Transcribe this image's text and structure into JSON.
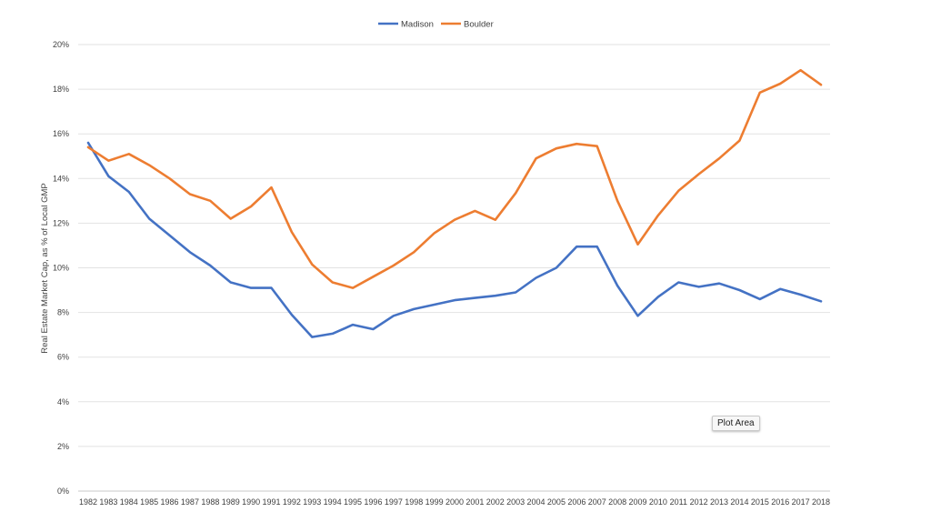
{
  "chart_data": {
    "type": "line",
    "title": "",
    "xlabel": "",
    "ylabel": "Real Estate Market Cap, as % of Local GMP",
    "ylim": [
      0,
      20
    ],
    "y_ticks": [
      "0%",
      "2%",
      "4%",
      "6%",
      "8%",
      "10%",
      "12%",
      "14%",
      "16%",
      "18%",
      "20%"
    ],
    "grid": true,
    "legend_position": "top-center",
    "categories": [
      "1982",
      "1983",
      "1984",
      "1985",
      "1986",
      "1987",
      "1988",
      "1989",
      "1990",
      "1991",
      "1992",
      "1993",
      "1994",
      "1995",
      "1996",
      "1997",
      "1998",
      "1999",
      "2000",
      "2001",
      "2002",
      "2003",
      "2004",
      "2005",
      "2006",
      "2007",
      "2008",
      "2009",
      "2010",
      "2011",
      "2012",
      "2013",
      "2014",
      "2015",
      "2016",
      "2017",
      "2018"
    ],
    "series": [
      {
        "name": "Madison",
        "color": "#4472C4",
        "values": [
          15.6,
          14.1,
          13.4,
          12.2,
          11.45,
          10.7,
          10.1,
          9.35,
          9.1,
          9.1,
          7.9,
          6.9,
          7.05,
          7.45,
          7.25,
          7.85,
          8.15,
          8.35,
          8.55,
          8.65,
          8.75,
          8.9,
          9.55,
          10.0,
          10.95,
          10.95,
          9.2,
          7.85,
          8.7,
          9.35,
          9.15,
          9.3,
          9.0,
          8.6,
          9.05,
          8.8,
          8.5
        ]
      },
      {
        "name": "Boulder",
        "color": "#ED7D31",
        "values": [
          15.4,
          14.8,
          15.1,
          14.6,
          14.0,
          13.3,
          13.0,
          12.2,
          12.75,
          13.6,
          11.6,
          10.15,
          9.35,
          9.1,
          9.6,
          10.1,
          10.7,
          11.55,
          12.15,
          12.55,
          12.15,
          13.35,
          14.9,
          15.35,
          15.55,
          15.45,
          13.0,
          11.05,
          12.35,
          13.45,
          14.2,
          14.9,
          15.7,
          17.85,
          18.25,
          18.85,
          18.2
        ]
      }
    ]
  },
  "tooltip": {
    "text": "Plot Area"
  }
}
